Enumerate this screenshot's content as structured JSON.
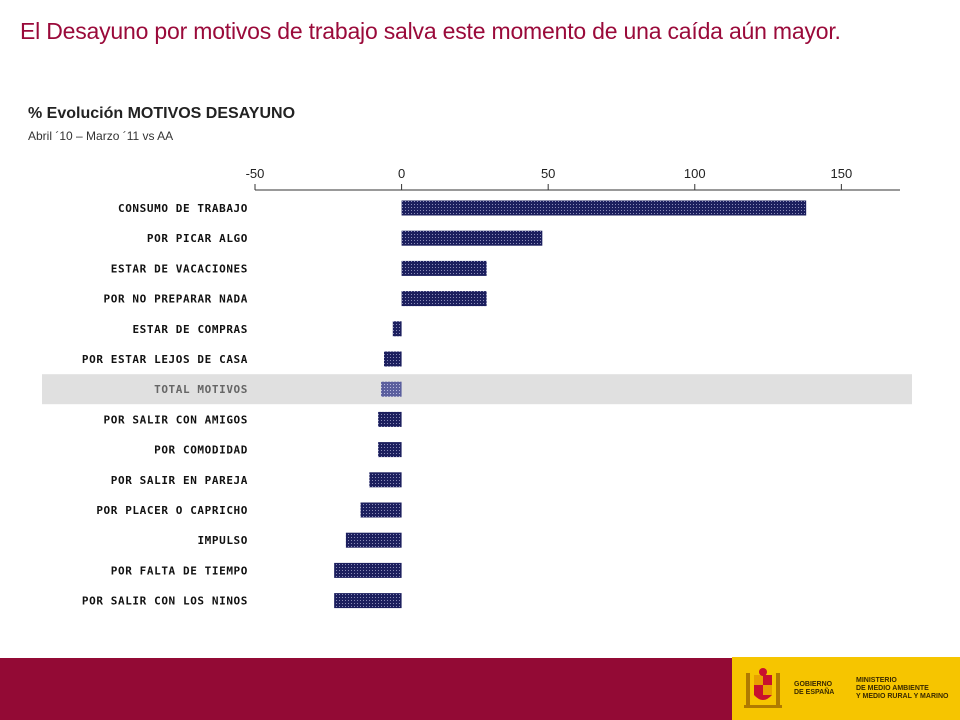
{
  "title": "El Desayuno por motivos de trabajo salva este momento de una caída aún mayor.",
  "chart": {
    "title": "% Evolución MOTIVOS DESAYUNO",
    "subtitle": "Abril ´10 – Marzo ´11 vs AA"
  },
  "chart_data": {
    "type": "bar",
    "orientation": "horizontal",
    "title": "% Evolución MOTIVOS DESAYUNO",
    "subtitle": "Abril ´10 – Marzo ´11 vs AA",
    "xlim": [
      -50,
      170
    ],
    "x_ticks": [
      "-50",
      "0",
      "50",
      "100",
      "150"
    ],
    "x_tick_values": [
      -50,
      0,
      50,
      100,
      150
    ],
    "axis_position": "top",
    "grid": false,
    "highlight_category": "TOTAL MOTIVOS",
    "categories": [
      "CONSUMO DE TRABAJO",
      "POR PICAR ALGO",
      "ESTAR DE VACACIONES",
      "POR NO PREPARAR NADA",
      "ESTAR DE COMPRAS",
      "POR ESTAR LEJOS DE CASA",
      "TOTAL MOTIVOS",
      "POR SALIR CON AMIGOS",
      "POR COMODIDAD",
      "POR SALIR EN PAREJA",
      "POR PLACER O CAPRICHO",
      "IMPULSO",
      "POR FALTA DE TIEMPO",
      "POR SALIR CON LOS NINOS"
    ],
    "values": [
      138,
      48,
      29,
      29,
      -3,
      -6,
      -7,
      -8,
      -8,
      -11,
      -14,
      -19,
      -23,
      -23
    ]
  },
  "colors": {
    "bar": "#1c1f5e",
    "bar_highlight": "#5b5f9e",
    "highlight_row": "#e0e0e0",
    "title": "#9a0a3a",
    "footer": "#930a35",
    "logo_bg": "#f6c500"
  },
  "footer": {
    "logo_left": [
      "GOBIERNO",
      "DE ESPAÑA"
    ],
    "logo_right": [
      "MINISTERIO",
      "DE MEDIO AMBIENTE",
      "Y MEDIO RURAL Y MARINO"
    ]
  }
}
